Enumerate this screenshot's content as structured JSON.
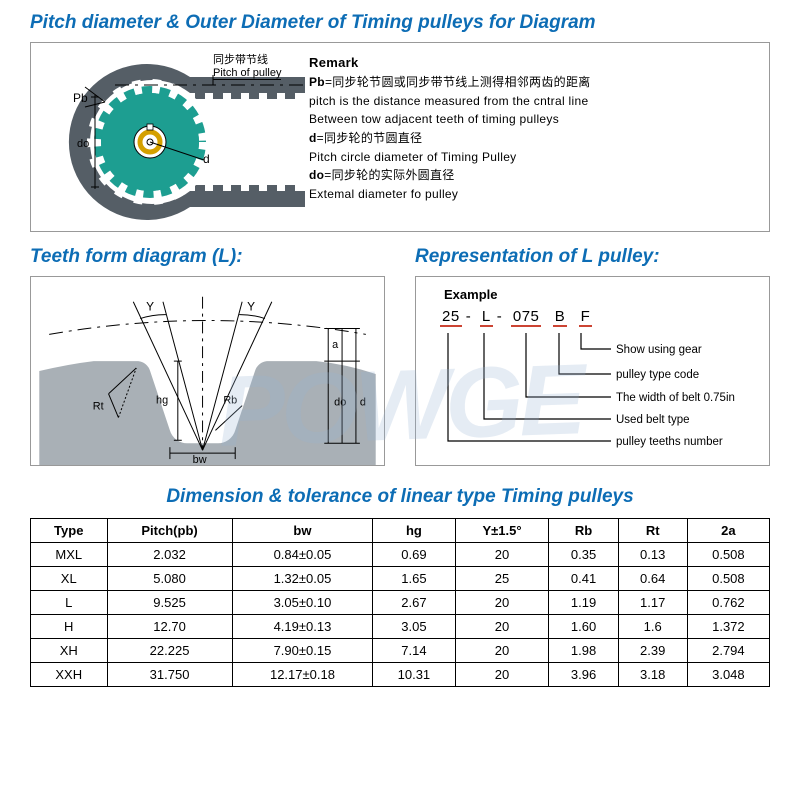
{
  "title_main": "Pitch diameter & Outer Diameter of Timing pulleys for Diagram",
  "pulley_fig": {
    "pitch_label_cn": "同步带节线",
    "pitch_label_en": "Pitch of pulley",
    "pb_label": "Pb",
    "do_label": "do",
    "d_label": "d",
    "gear_color": "#1d9e91",
    "belt_color": "#555e66",
    "line_color": "#000000"
  },
  "remark": {
    "heading": "Remark",
    "pb_cn": "=同步轮节圆或同步带节线上测得相邻两齿的距离",
    "pb_en1": "pitch is the distance measured from the cntral line",
    "pb_en2": "Between tow adjacent teeth of  timing pulleys",
    "d_cn": "=同步轮的节圆直径",
    "d_en": "Pitch circle diameter of Timing Pulley",
    "do_cn": "=同步轮的实际外圆直径",
    "do_en": "Extemal diameter fo pulley"
  },
  "subhead_left": "Teeth form diagram (L):",
  "subhead_right": "Representation of L pulley:",
  "teeth_fig": {
    "fill": "#a9b0b6",
    "labels": {
      "Y": "Y",
      "a": "a",
      "do": "do",
      "d": "d",
      "hg": "hg",
      "Rb": "Rb",
      "Rt": "Rt",
      "bw": "bw"
    }
  },
  "rep": {
    "example": "Example",
    "parts": [
      "25",
      "L",
      "075",
      "B",
      "F"
    ],
    "desc": [
      "Show using gear",
      "pulley type code",
      "The width of belt 0.75in",
      "Used belt type",
      "pulley teeths number"
    ]
  },
  "title2": "Dimension & tolerance of linear type Timing pulleys",
  "table": {
    "columns": [
      "Type",
      "Pitch(pb)",
      "bw",
      "hg",
      "Y±1.5°",
      "Rb",
      "Rt",
      "2a"
    ],
    "rows": [
      [
        "MXL",
        "2.032",
        "0.84±0.05",
        "0.69",
        "20",
        "0.35",
        "0.13",
        "0.508"
      ],
      [
        "XL",
        "5.080",
        "1.32±0.05",
        "1.65",
        "25",
        "0.41",
        "0.64",
        "0.508"
      ],
      [
        "L",
        "9.525",
        "3.05±0.10",
        "2.67",
        "20",
        "1.19",
        "1.17",
        "0.762"
      ],
      [
        "H",
        "12.70",
        "4.19±0.13",
        "3.05",
        "20",
        "1.60",
        "1.6",
        "1.372"
      ],
      [
        "XH",
        "22.225",
        "7.90±0.15",
        "7.14",
        "20",
        "1.98",
        "2.39",
        "2.794"
      ],
      [
        "XXH",
        "31.750",
        "12.17±0.18",
        "10.31",
        "20",
        "3.96",
        "3.18",
        "3.048"
      ]
    ]
  },
  "watermark": "POWGE"
}
